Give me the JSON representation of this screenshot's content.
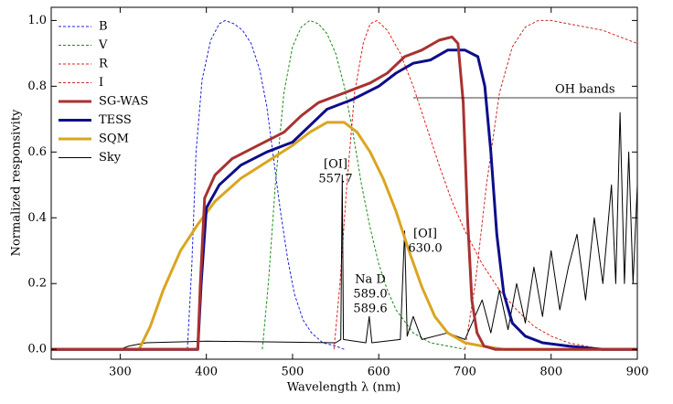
{
  "chart_data": {
    "type": "line",
    "xlabel": "Wavelength λ (nm)",
    "ylabel": "Normalized responsivity",
    "xlim": [
      220,
      900
    ],
    "xticks": [
      300,
      400,
      500,
      600,
      700,
      800,
      900
    ],
    "ylim": [
      -0.03,
      1.04
    ],
    "yticks": [
      {
        "value": 0,
        "label": "0.0"
      },
      0.2,
      0.4,
      0.6,
      0.8,
      {
        "value": 1,
        "label": "1.0"
      }
    ],
    "legend": "upper left",
    "series": [
      {
        "name": "B",
        "color": "#2020e0",
        "style": "dashed",
        "x": [
          378,
          383,
          388,
          395,
          405,
          415,
          422,
          432,
          442,
          452,
          462,
          470,
          478,
          486,
          494,
          502,
          512,
          522,
          535,
          550,
          560
        ],
        "values": [
          0,
          0.25,
          0.6,
          0.82,
          0.94,
          0.99,
          1.0,
          0.99,
          0.97,
          0.93,
          0.85,
          0.74,
          0.58,
          0.42,
          0.28,
          0.17,
          0.09,
          0.05,
          0.02,
          0.01,
          0
        ]
      },
      {
        "name": "V",
        "color": "#1f8a1f",
        "style": "dashed",
        "x": [
          465,
          472,
          480,
          490,
          500,
          510,
          520,
          530,
          540,
          550,
          560,
          570,
          580,
          590,
          600,
          610,
          620,
          640,
          660,
          680,
          700
        ],
        "values": [
          0,
          0.2,
          0.5,
          0.78,
          0.92,
          0.98,
          1.0,
          0.99,
          0.96,
          0.9,
          0.8,
          0.66,
          0.5,
          0.37,
          0.26,
          0.18,
          0.12,
          0.05,
          0.02,
          0.01,
          0
        ]
      },
      {
        "name": "R",
        "color": "#e02020",
        "style": "dashed",
        "x": [
          548,
          555,
          563,
          572,
          582,
          590,
          598,
          610,
          625,
          640,
          655,
          670,
          685,
          700,
          720,
          740,
          760,
          780,
          800,
          820,
          840,
          860
        ],
        "values": [
          0,
          0.2,
          0.5,
          0.78,
          0.93,
          0.99,
          1.0,
          0.97,
          0.9,
          0.8,
          0.68,
          0.56,
          0.45,
          0.36,
          0.26,
          0.18,
          0.12,
          0.07,
          0.04,
          0.02,
          0.01,
          0
        ]
      },
      {
        "name": "I",
        "color": "#c03030",
        "style": "dashed",
        "x": [
          700,
          712,
          725,
          740,
          755,
          770,
          785,
          800,
          820,
          840,
          860,
          880,
          900
        ],
        "values": [
          0,
          0.2,
          0.5,
          0.78,
          0.92,
          0.98,
          1.0,
          1.0,
          0.99,
          0.98,
          0.97,
          0.95,
          0.93
        ]
      },
      {
        "name": "SG-WAS",
        "color": "#a83232",
        "style": "thick",
        "x": [
          220,
          390,
          393,
          398,
          410,
          430,
          460,
          490,
          510,
          530,
          560,
          590,
          610,
          630,
          650,
          670,
          685,
          692,
          698,
          703,
          708,
          714,
          722,
          735,
          900
        ],
        "values": [
          0,
          0,
          0.2,
          0.46,
          0.53,
          0.58,
          0.62,
          0.66,
          0.71,
          0.75,
          0.78,
          0.81,
          0.84,
          0.89,
          0.91,
          0.94,
          0.95,
          0.93,
          0.75,
          0.4,
          0.15,
          0.05,
          0.01,
          0,
          0
        ]
      },
      {
        "name": "TESS",
        "color": "#0d0d8a",
        "style": "thick",
        "x": [
          220,
          390,
          394,
          400,
          415,
          440,
          470,
          500,
          520,
          540,
          570,
          600,
          620,
          640,
          660,
          680,
          700,
          715,
          723,
          730,
          737,
          745,
          755,
          770,
          790,
          820,
          860,
          900
        ],
        "values": [
          0,
          0,
          0.2,
          0.43,
          0.5,
          0.56,
          0.6,
          0.63,
          0.68,
          0.73,
          0.76,
          0.8,
          0.84,
          0.87,
          0.88,
          0.91,
          0.91,
          0.89,
          0.8,
          0.6,
          0.35,
          0.17,
          0.08,
          0.04,
          0.02,
          0.01,
          0,
          0
        ]
      },
      {
        "name": "SQM",
        "color": "#daa520",
        "style": "thick",
        "x": [
          220,
          322,
          335,
          350,
          370,
          390,
          410,
          440,
          470,
          500,
          520,
          540,
          560,
          575,
          590,
          605,
          620,
          635,
          650,
          665,
          680,
          700,
          720,
          745,
          900
        ],
        "values": [
          0,
          0,
          0.07,
          0.18,
          0.3,
          0.38,
          0.45,
          0.52,
          0.57,
          0.62,
          0.66,
          0.69,
          0.69,
          0.66,
          0.6,
          0.52,
          0.42,
          0.3,
          0.19,
          0.1,
          0.05,
          0.02,
          0.01,
          0,
          0
        ]
      },
      {
        "name": "Sky",
        "color": "#000000",
        "style": "thin",
        "x": [
          220,
          300,
          310,
          330,
          400,
          550,
          556,
          557.7,
          559,
          585,
          589,
          592,
          625,
          630,
          633,
          640,
          650,
          680,
          700,
          720,
          730,
          740,
          750,
          760,
          770,
          780,
          790,
          800,
          810,
          820,
          830,
          840,
          850,
          860,
          870,
          875,
          880,
          885,
          890,
          895,
          900
        ],
        "values": [
          0,
          0,
          0.01,
          0.02,
          0.025,
          0.02,
          0.03,
          0.53,
          0.03,
          0.02,
          0.1,
          0.02,
          0.03,
          0.36,
          0.04,
          0.1,
          0.03,
          0.05,
          0.03,
          0.15,
          0.05,
          0.18,
          0.06,
          0.2,
          0.08,
          0.25,
          0.1,
          0.3,
          0.12,
          0.25,
          0.35,
          0.15,
          0.4,
          0.2,
          0.5,
          0.2,
          0.72,
          0.2,
          0.6,
          0.2,
          0.5
        ]
      }
    ],
    "annotations": [
      {
        "lines": [
          "[OI]",
          "557.7"
        ]
      },
      {
        "lines": [
          "[OI]",
          "630.0"
        ]
      },
      {
        "lines": [
          "Na D",
          "589.0",
          "589.6"
        ]
      },
      {
        "lines": [
          "OH bands"
        ]
      }
    ]
  }
}
